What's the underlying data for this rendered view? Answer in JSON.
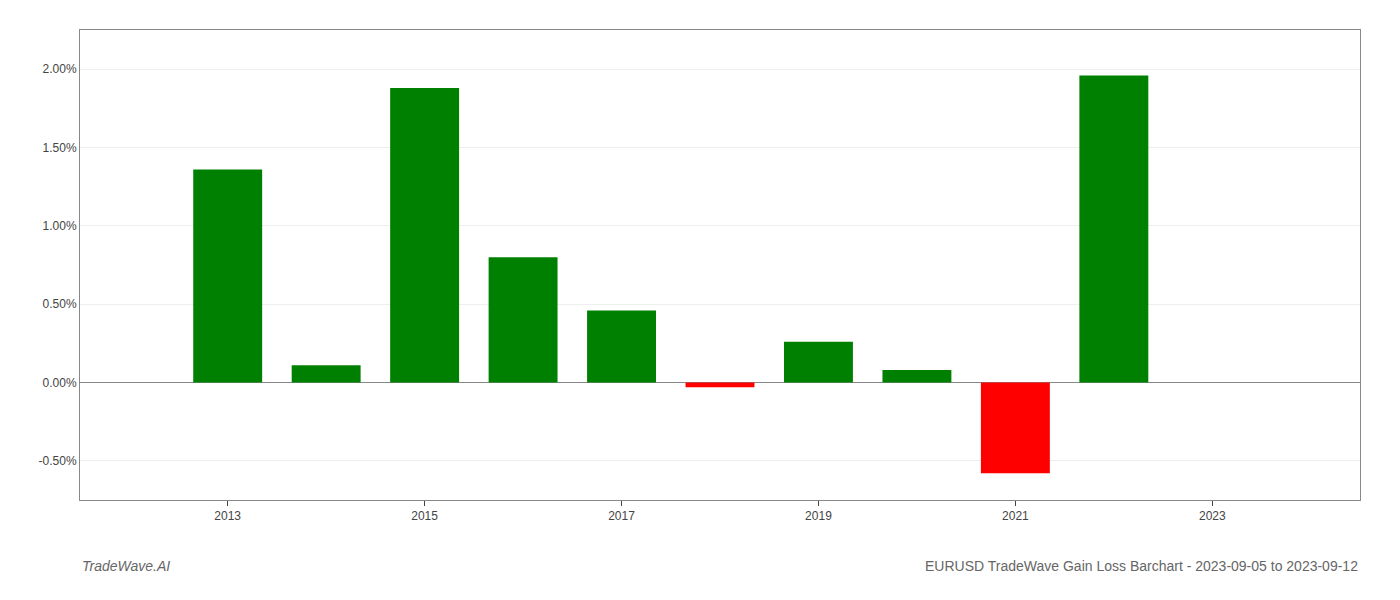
{
  "chart_data": {
    "type": "bar",
    "title": "EURUSD TradeWave Gain Loss Barchart - 2023-09-05 to 2023-09-12",
    "annotations": [
      "TradeWave.AI"
    ],
    "x": [
      2013,
      2014,
      2015,
      2016,
      2017,
      2018,
      2019,
      2020,
      2021,
      2022
    ],
    "values": [
      0.0136,
      0.0011,
      0.0188,
      0.008,
      0.0046,
      -0.0003,
      0.0026,
      0.0008,
      -0.0058,
      0.0196
    ],
    "colors": [
      "#008000",
      "#008000",
      "#008000",
      "#008000",
      "#008000",
      "#ff0000",
      "#008000",
      "#008000",
      "#ff0000",
      "#008000"
    ],
    "xlim": [
      2011.5,
      2024.5
    ],
    "xticks": [
      2013,
      2015,
      2017,
      2019,
      2021,
      2023
    ],
    "ylim": [
      -0.0075,
      0.0225
    ],
    "yticks": [
      {
        "value": -0.005,
        "label": "-0.50%"
      },
      {
        "value": 0.0,
        "label": "0.00%"
      },
      {
        "value": 0.005,
        "label": "0.50%"
      },
      {
        "value": 0.01,
        "label": "1.00%"
      },
      {
        "value": 0.015,
        "label": "1.50%"
      },
      {
        "value": 0.02,
        "label": "2.00%"
      }
    ],
    "grid": true
  }
}
